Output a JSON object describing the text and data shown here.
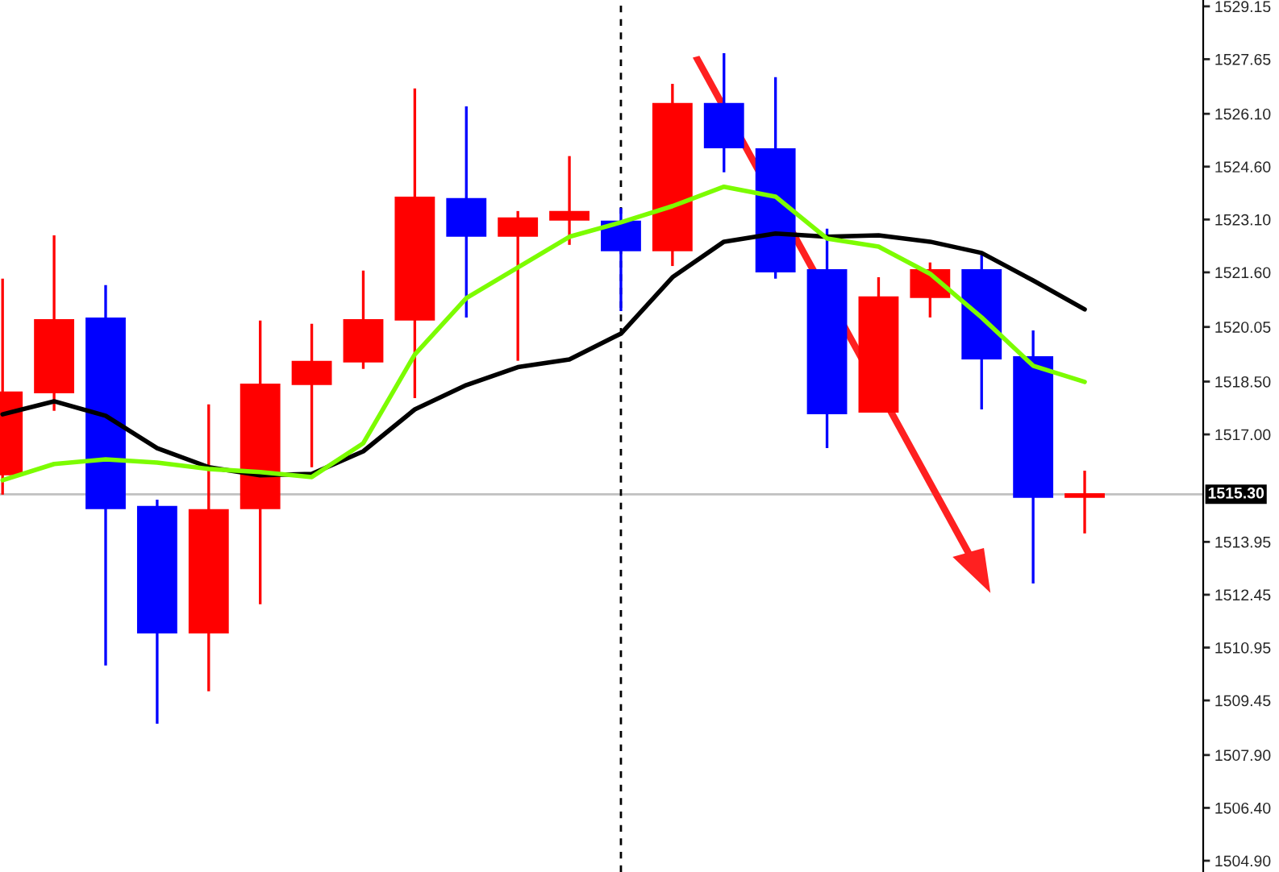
{
  "chart_data": {
    "type": "candlestick",
    "categories": [
      null,
      null,
      null,
      null,
      null,
      null,
      null,
      null,
      null,
      null,
      null,
      null,
      null,
      null,
      null,
      null,
      null,
      null,
      null,
      null,
      null,
      null
    ],
    "ohlc": [
      [
        1515.84,
        1521.42,
        1515.29,
        1518.22
      ],
      [
        1518.17,
        1522.65,
        1517.67,
        1520.27
      ],
      [
        1520.32,
        1521.24,
        1510.44,
        1514.88
      ],
      [
        1514.97,
        1515.15,
        1508.79,
        1511.35
      ],
      [
        1511.35,
        1517.85,
        1509.71,
        1514.88
      ],
      [
        1514.88,
        1520.23,
        1512.18,
        1518.44
      ],
      [
        1518.4,
        1520.14,
        1516.07,
        1519.09
      ],
      [
        1519.04,
        1521.65,
        1518.86,
        1520.27
      ],
      [
        1520.23,
        1526.82,
        1518.03,
        1523.75
      ],
      [
        1523.71,
        1526.31,
        1520.32,
        1522.61
      ],
      [
        1522.61,
        1523.34,
        1519.09,
        1523.16
      ],
      [
        1523.07,
        1524.9,
        1522.38,
        1523.34
      ],
      [
        1523.07,
        1523.43,
        1520.5,
        1522.2
      ],
      [
        1522.2,
        1526.95,
        1521.78,
        1526.41
      ],
      [
        1526.41,
        1527.82,
        1524.44,
        1525.12
      ],
      [
        1525.12,
        1527.14,
        1521.42,
        1521.6
      ],
      [
        1521.69,
        1522.84,
        1516.61,
        1517.57
      ],
      [
        1517.62,
        1521.46,
        1517.62,
        1520.92
      ],
      [
        1520.87,
        1521.88,
        1520.32,
        1521.69
      ],
      [
        1521.69,
        1522.1,
        1517.71,
        1519.13
      ],
      [
        1519.22,
        1519.95,
        1512.77,
        1515.2
      ],
      [
        1515.2,
        1515.97,
        1514.19,
        1515.33
      ]
    ],
    "colors": [
      "#ff0000",
      "#ff0000",
      "#0000ff",
      "#0000ff",
      "#ff0000",
      "#ff0000",
      "#ff0000",
      "#ff0000",
      "#ff0000",
      "#0000ff",
      "#ff0000",
      "#ff0000",
      "#0000ff",
      "#ff0000",
      "#0000ff",
      "#0000ff",
      "#0000ff",
      "#ff0000",
      "#ff0000",
      "#0000ff",
      "#0000ff",
      "#ff0000"
    ],
    "series": [
      {
        "type": "line",
        "color": "#000000",
        "values": [
          1517.57,
          1517.94,
          1517.53,
          1516.61,
          1516.07,
          1515.84,
          1515.88,
          1516.52,
          1517.71,
          1518.4,
          1518.91,
          1519.13,
          1519.86,
          1521.46,
          1522.47,
          1522.7,
          1522.61,
          1522.65,
          1522.47,
          1522.15,
          1521.37,
          1520.55
        ]
      },
      {
        "type": "line",
        "color": "#7cfc00",
        "values": [
          1515.7,
          1516.16,
          1516.29,
          1516.2,
          1516.02,
          1515.93,
          1515.79,
          1516.75,
          1519.27,
          1520.87,
          1521.74,
          1522.61,
          1523.02,
          1523.48,
          1524.03,
          1523.75,
          1522.56,
          1522.33,
          1521.56,
          1520.32,
          1518.95,
          1518.49
        ]
      }
    ],
    "ylim": [
      1504.58,
      1529.33
    ],
    "yticks": [
      {
        "value": 1504.9,
        "label": "1504.90"
      },
      {
        "value": 1506.4,
        "label": "1506.40"
      },
      {
        "value": 1507.9,
        "label": "1507.90"
      },
      {
        "value": 1509.45,
        "label": "1509.45"
      },
      {
        "value": 1510.95,
        "label": "1510.95"
      },
      {
        "value": 1512.45,
        "label": "1512.45"
      },
      {
        "value": 1513.95,
        "label": "1513.95"
      },
      {
        "value": 1517.0,
        "label": "1517.00"
      },
      {
        "value": 1518.5,
        "label": "1518.50"
      },
      {
        "value": 1520.05,
        "label": "1520.05"
      },
      {
        "value": 1521.6,
        "label": "1521.60"
      },
      {
        "value": 1523.1,
        "label": "1523.10"
      },
      {
        "value": 1524.6,
        "label": "1524.60"
      },
      {
        "value": 1526.1,
        "label": "1526.10"
      },
      {
        "value": 1527.65,
        "label": "1527.65"
      },
      {
        "value": 1529.15,
        "label": "1529.15"
      }
    ],
    "ref_lines": [
      {
        "axis": "y",
        "value": 1515.3,
        "label": "1515.30",
        "color": "#c0c0c0",
        "line_style": "solid"
      }
    ],
    "tick_labels": "y",
    "grid": false,
    "legend": false
  }
}
